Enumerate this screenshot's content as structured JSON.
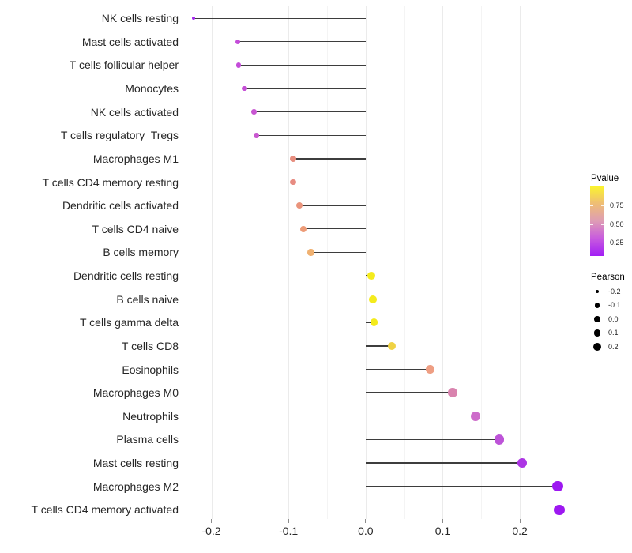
{
  "chart_data": {
    "type": "scatter",
    "subtype": "lollipop",
    "title": "",
    "xlabel": "",
    "ylabel": "",
    "grid": "vertical-only",
    "legend_position": "right",
    "x_axis": {
      "ticks": [
        -0.2,
        -0.1,
        0.0,
        0.1,
        0.2
      ],
      "tick_labels": [
        "-0.2",
        "-0.1",
        "0.0",
        "0.1",
        "0.2"
      ],
      "minor_ticks": [
        -0.15,
        -0.05,
        0.05,
        0.15,
        0.25
      ],
      "range": [
        -0.25,
        0.275
      ]
    },
    "rows": [
      {
        "label": "NK cells resting",
        "pearson": -0.223,
        "color": "#A428EF"
      },
      {
        "label": "Mast cells activated",
        "pearson": -0.166,
        "color": "#C44CD9"
      },
      {
        "label": "T cells follicular helper",
        "pearson": -0.165,
        "color": "#C44CD9"
      },
      {
        "label": "Monocytes",
        "pearson": -0.157,
        "color": "#C54FD6"
      },
      {
        "label": "NK cells activated",
        "pearson": -0.145,
        "color": "#C856D2"
      },
      {
        "label": "T cells regulatory  Tregs",
        "pearson": -0.142,
        "color": "#C958D0"
      },
      {
        "label": "Macrophages M1",
        "pearson": -0.094,
        "color": "#E78E7F"
      },
      {
        "label": "T cells CD4 memory resting",
        "pearson": -0.094,
        "color": "#E78C82"
      },
      {
        "label": "Dendritic cells activated",
        "pearson": -0.086,
        "color": "#EA947C"
      },
      {
        "label": "T cells CD4 naive",
        "pearson": -0.081,
        "color": "#ED9B77"
      },
      {
        "label": "B cells memory",
        "pearson": -0.071,
        "color": "#F0B171"
      },
      {
        "label": "Dendritic cells resting",
        "pearson": 0.007,
        "color": "#F4EB1C"
      },
      {
        "label": "B cells naive",
        "pearson": 0.009,
        "color": "#F4EB1C"
      },
      {
        "label": "T cells gamma delta",
        "pearson": 0.011,
        "color": "#F4EB1C"
      },
      {
        "label": "T cells CD8",
        "pearson": 0.034,
        "color": "#EFD244"
      },
      {
        "label": "Eosinophils",
        "pearson": 0.084,
        "color": "#EE9E83"
      },
      {
        "label": "Macrophages M0",
        "pearson": 0.113,
        "color": "#D983AE"
      },
      {
        "label": "Neutrophils",
        "pearson": 0.143,
        "color": "#CD6CCA"
      },
      {
        "label": "Plasma cells",
        "pearson": 0.173,
        "color": "#BD53D8"
      },
      {
        "label": "Mast cells resting",
        "pearson": 0.203,
        "color": "#AC35E4"
      },
      {
        "label": "Macrophages M2",
        "pearson": 0.249,
        "color": "#9D18F1"
      },
      {
        "label": "T cells CD4 memory activated",
        "pearson": 0.251,
        "color": "#9D18F1"
      }
    ],
    "legend": {
      "pvalue": {
        "title": "Pvalue",
        "tick_labels": [
          "0.75",
          "0.50",
          "0.25"
        ],
        "tick_values": [
          0.75,
          0.5,
          0.25
        ],
        "gradient_top_to_bottom": [
          "#FBF62B",
          "#EFBE74",
          "#DE9DB4",
          "#C85BDE",
          "#A21EF5"
        ]
      },
      "pearson": {
        "title": "Pearson",
        "items": [
          "-0.2",
          "-0.1",
          "0.0",
          "0.1",
          "0.2"
        ],
        "dot_color": "#000000"
      }
    }
  }
}
